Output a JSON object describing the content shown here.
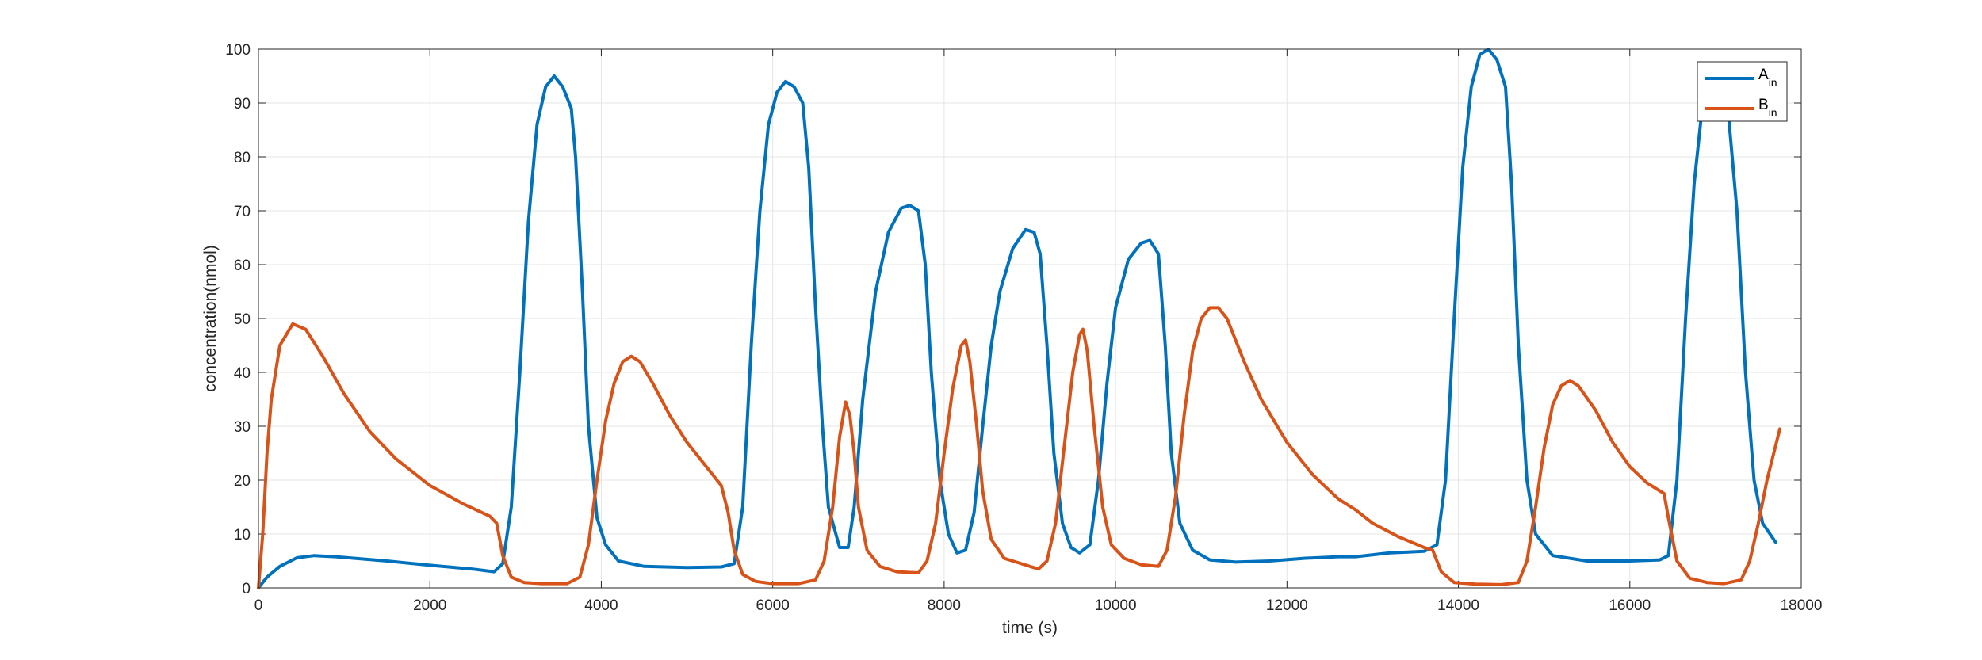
{
  "chart_data": {
    "type": "line",
    "xlabel": "time (s)",
    "ylabel": "concentration(nmol)",
    "xlim": [
      0,
      18000
    ],
    "ylim": [
      0,
      100
    ],
    "xticks": [
      0,
      2000,
      4000,
      6000,
      8000,
      10000,
      12000,
      14000,
      16000,
      18000
    ],
    "yticks": [
      0,
      10,
      20,
      30,
      40,
      50,
      60,
      70,
      80,
      90,
      100
    ],
    "grid": true,
    "legend_position": "top-right",
    "series": [
      {
        "name": "A",
        "subscript": "in",
        "color": "#0072BD",
        "points": [
          [
            0,
            0
          ],
          [
            100,
            2
          ],
          [
            250,
            4
          ],
          [
            450,
            5.6
          ],
          [
            650,
            6
          ],
          [
            900,
            5.8
          ],
          [
            1500,
            5
          ],
          [
            2000,
            4.2
          ],
          [
            2500,
            3.5
          ],
          [
            2750,
            3
          ],
          [
            2850,
            4.5
          ],
          [
            2950,
            15
          ],
          [
            3050,
            40
          ],
          [
            3150,
            68
          ],
          [
            3250,
            86
          ],
          [
            3350,
            93
          ],
          [
            3450,
            95
          ],
          [
            3550,
            93
          ],
          [
            3650,
            89
          ],
          [
            3700,
            80
          ],
          [
            3780,
            55
          ],
          [
            3850,
            30
          ],
          [
            3950,
            13
          ],
          [
            4050,
            8
          ],
          [
            4200,
            5
          ],
          [
            4500,
            4
          ],
          [
            5000,
            3.8
          ],
          [
            5400,
            3.9
          ],
          [
            5550,
            4.5
          ],
          [
            5650,
            15
          ],
          [
            5750,
            45
          ],
          [
            5850,
            70
          ],
          [
            5950,
            86
          ],
          [
            6050,
            92
          ],
          [
            6150,
            94
          ],
          [
            6250,
            93
          ],
          [
            6350,
            90
          ],
          [
            6420,
            78
          ],
          [
            6500,
            52
          ],
          [
            6580,
            30
          ],
          [
            6650,
            15
          ],
          [
            6780,
            7.5
          ],
          [
            6880,
            7.5
          ],
          [
            6950,
            15
          ],
          [
            7050,
            35
          ],
          [
            7200,
            55
          ],
          [
            7350,
            66
          ],
          [
            7500,
            70.5
          ],
          [
            7600,
            71
          ],
          [
            7700,
            70
          ],
          [
            7780,
            60
          ],
          [
            7850,
            40
          ],
          [
            7950,
            20
          ],
          [
            8050,
            10
          ],
          [
            8150,
            6.5
          ],
          [
            8250,
            7
          ],
          [
            8350,
            14
          ],
          [
            8450,
            30
          ],
          [
            8550,
            45
          ],
          [
            8650,
            55
          ],
          [
            8800,
            63
          ],
          [
            8950,
            66.5
          ],
          [
            9050,
            66
          ],
          [
            9120,
            62
          ],
          [
            9200,
            45
          ],
          [
            9280,
            25
          ],
          [
            9380,
            12
          ],
          [
            9480,
            7.5
          ],
          [
            9580,
            6.5
          ],
          [
            9700,
            8
          ],
          [
            9800,
            20
          ],
          [
            9900,
            38
          ],
          [
            10000,
            52
          ],
          [
            10150,
            61
          ],
          [
            10300,
            64
          ],
          [
            10400,
            64.5
          ],
          [
            10500,
            62
          ],
          [
            10580,
            45
          ],
          [
            10650,
            25
          ],
          [
            10750,
            12
          ],
          [
            10900,
            7
          ],
          [
            11100,
            5.2
          ],
          [
            11400,
            4.8
          ],
          [
            11800,
            5
          ],
          [
            12200,
            5.5
          ],
          [
            12600,
            5.8
          ],
          [
            12800,
            5.8
          ],
          [
            13200,
            6.5
          ],
          [
            13600,
            6.8
          ],
          [
            13750,
            8
          ],
          [
            13850,
            20
          ],
          [
            13950,
            50
          ],
          [
            14050,
            78
          ],
          [
            14150,
            93
          ],
          [
            14250,
            99
          ],
          [
            14350,
            100
          ],
          [
            14450,
            98
          ],
          [
            14550,
            93
          ],
          [
            14620,
            75
          ],
          [
            14700,
            45
          ],
          [
            14800,
            20
          ],
          [
            14900,
            10
          ],
          [
            15100,
            6
          ],
          [
            15500,
            5
          ],
          [
            16000,
            5
          ],
          [
            16350,
            5.2
          ],
          [
            16450,
            6
          ],
          [
            16550,
            20
          ],
          [
            16650,
            50
          ],
          [
            16750,
            75
          ],
          [
            16850,
            90
          ],
          [
            16950,
            92
          ],
          [
            17050,
            93
          ],
          [
            17150,
            88
          ],
          [
            17250,
            70
          ],
          [
            17350,
            40
          ],
          [
            17450,
            20
          ],
          [
            17550,
            12
          ],
          [
            17700,
            8.5
          ]
        ]
      },
      {
        "name": "B",
        "subscript": "in",
        "color": "#D95319",
        "points": [
          [
            0,
            0
          ],
          [
            50,
            10
          ],
          [
            100,
            25
          ],
          [
            150,
            35
          ],
          [
            250,
            45
          ],
          [
            400,
            49
          ],
          [
            550,
            48
          ],
          [
            750,
            43
          ],
          [
            1000,
            36
          ],
          [
            1300,
            29
          ],
          [
            1600,
            24
          ],
          [
            2000,
            19
          ],
          [
            2400,
            15.5
          ],
          [
            2700,
            13.3
          ],
          [
            2780,
            12
          ],
          [
            2850,
            6
          ],
          [
            2950,
            2
          ],
          [
            3100,
            1
          ],
          [
            3300,
            0.8
          ],
          [
            3600,
            0.8
          ],
          [
            3750,
            2
          ],
          [
            3850,
            8
          ],
          [
            3950,
            20
          ],
          [
            4050,
            31
          ],
          [
            4150,
            38
          ],
          [
            4250,
            42
          ],
          [
            4350,
            43
          ],
          [
            4450,
            42
          ],
          [
            4600,
            38
          ],
          [
            4800,
            32
          ],
          [
            5000,
            27
          ],
          [
            5200,
            23
          ],
          [
            5400,
            19
          ],
          [
            5480,
            14
          ],
          [
            5550,
            7
          ],
          [
            5650,
            2.5
          ],
          [
            5800,
            1.2
          ],
          [
            6000,
            0.8
          ],
          [
            6300,
            0.8
          ],
          [
            6500,
            1.5
          ],
          [
            6600,
            5
          ],
          [
            6700,
            15
          ],
          [
            6780,
            28
          ],
          [
            6850,
            34.5
          ],
          [
            6900,
            32
          ],
          [
            6950,
            25
          ],
          [
            7000,
            15
          ],
          [
            7100,
            7
          ],
          [
            7250,
            4
          ],
          [
            7450,
            3
          ],
          [
            7700,
            2.8
          ],
          [
            7800,
            5
          ],
          [
            7900,
            12
          ],
          [
            8000,
            25
          ],
          [
            8100,
            37
          ],
          [
            8200,
            45
          ],
          [
            8250,
            46
          ],
          [
            8300,
            42
          ],
          [
            8380,
            30
          ],
          [
            8450,
            18
          ],
          [
            8550,
            9
          ],
          [
            8700,
            5.5
          ],
          [
            8900,
            4.5
          ],
          [
            9100,
            3.5
          ],
          [
            9200,
            5
          ],
          [
            9300,
            12
          ],
          [
            9400,
            26
          ],
          [
            9500,
            40
          ],
          [
            9580,
            47
          ],
          [
            9620,
            48
          ],
          [
            9670,
            44
          ],
          [
            9750,
            30
          ],
          [
            9850,
            15
          ],
          [
            9950,
            8
          ],
          [
            10100,
            5.5
          ],
          [
            10300,
            4.3
          ],
          [
            10500,
            4
          ],
          [
            10600,
            7
          ],
          [
            10700,
            17
          ],
          [
            10800,
            32
          ],
          [
            10900,
            44
          ],
          [
            11000,
            50
          ],
          [
            11100,
            52
          ],
          [
            11200,
            52
          ],
          [
            11300,
            50
          ],
          [
            11500,
            42
          ],
          [
            11700,
            35
          ],
          [
            12000,
            27
          ],
          [
            12300,
            21
          ],
          [
            12600,
            16.5
          ],
          [
            12800,
            14.5
          ],
          [
            13000,
            12
          ],
          [
            13300,
            9.5
          ],
          [
            13600,
            7.5
          ],
          [
            13700,
            7
          ],
          [
            13800,
            3
          ],
          [
            13950,
            1
          ],
          [
            14200,
            0.7
          ],
          [
            14500,
            0.6
          ],
          [
            14700,
            1
          ],
          [
            14800,
            5
          ],
          [
            14900,
            15
          ],
          [
            15000,
            26
          ],
          [
            15100,
            34
          ],
          [
            15200,
            37.5
          ],
          [
            15300,
            38.5
          ],
          [
            15400,
            37.5
          ],
          [
            15600,
            33
          ],
          [
            15800,
            27
          ],
          [
            16000,
            22.5
          ],
          [
            16200,
            19.5
          ],
          [
            16400,
            17.5
          ],
          [
            16450,
            13
          ],
          [
            16550,
            5
          ],
          [
            16700,
            1.8
          ],
          [
            16900,
            1
          ],
          [
            17100,
            0.8
          ],
          [
            17300,
            1.5
          ],
          [
            17400,
            5
          ],
          [
            17500,
            12
          ],
          [
            17600,
            20
          ],
          [
            17750,
            29.5
          ]
        ]
      }
    ]
  }
}
